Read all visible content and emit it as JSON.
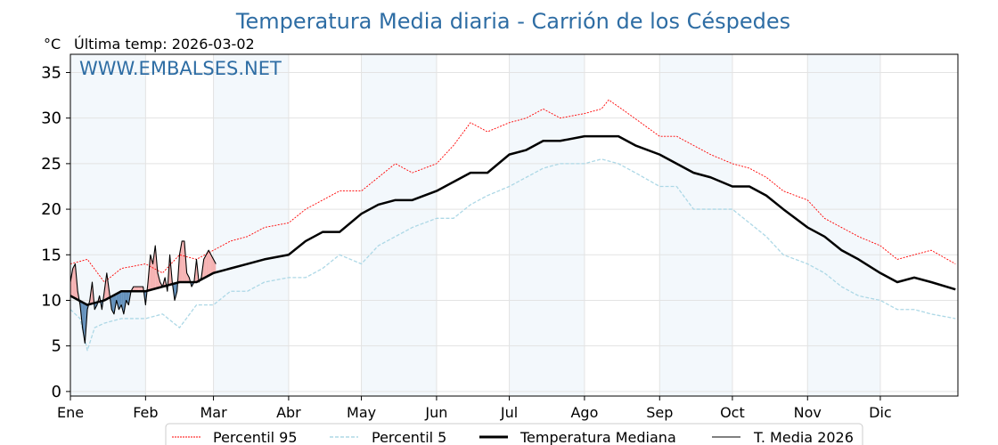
{
  "chart_data": {
    "type": "line",
    "title": "Temperatura Media diaria - Carrión de los Céspedes",
    "unit_label": "°C",
    "subtitle": "Última temp: 2026-03-02",
    "watermark": "WWW.EMBALSES.NET",
    "ylim": [
      -0.5,
      37
    ],
    "yticks": [
      0,
      5,
      10,
      15,
      20,
      25,
      30,
      35
    ],
    "xlim_days": [
      0,
      365
    ],
    "months": [
      {
        "label": "Ene",
        "day": 0
      },
      {
        "label": "Feb",
        "day": 31
      },
      {
        "label": "Mar",
        "day": 59
      },
      {
        "label": "Abr",
        "day": 90
      },
      {
        "label": "May",
        "day": 120
      },
      {
        "label": "Jun",
        "day": 151
      },
      {
        "label": "Jul",
        "day": 181
      },
      {
        "label": "Ago",
        "day": 212
      },
      {
        "label": "Sep",
        "day": 243
      },
      {
        "label": "Oct",
        "day": 273
      },
      {
        "label": "Nov",
        "day": 304
      },
      {
        "label": "Dic",
        "day": 334
      }
    ],
    "grid": true,
    "legend_position": "bottom-center",
    "colors": {
      "p95": "#ff0000",
      "p5": "#add8e6",
      "median": "#000000",
      "current": "#000000",
      "above": "#f4a6a6",
      "below": "#4a7fb0",
      "title": "#2e6da4",
      "band": "#f3f8fc"
    },
    "series": [
      {
        "key": "p95",
        "name": "Percentil 95",
        "days": [
          0,
          7,
          14,
          21,
          31,
          38,
          45,
          52,
          59,
          66,
          73,
          80,
          90,
          97,
          104,
          111,
          120,
          127,
          134,
          141,
          151,
          158,
          165,
          172,
          181,
          188,
          195,
          202,
          212,
          219,
          222,
          230,
          243,
          250,
          257,
          264,
          273,
          280,
          287,
          294,
          304,
          311,
          318,
          325,
          334,
          341,
          348,
          355,
          365
        ],
        "values": [
          14,
          14.5,
          12,
          13.5,
          14,
          13,
          15,
          14.5,
          15.5,
          16.5,
          17,
          18,
          18.5,
          20,
          21,
          22,
          22,
          23.5,
          25,
          24,
          25,
          27,
          29.5,
          28.5,
          29.5,
          30,
          31,
          30,
          30.5,
          31,
          32,
          30.5,
          28,
          28,
          27,
          26,
          25,
          24.5,
          23.5,
          22,
          21,
          19,
          18,
          17,
          16,
          14.5,
          15,
          15.5,
          14
        ]
      },
      {
        "key": "p5",
        "name": "Percentil 5",
        "days": [
          0,
          4,
          7,
          10,
          14,
          21,
          31,
          38,
          45,
          52,
          59,
          66,
          73,
          80,
          90,
          97,
          104,
          111,
          120,
          127,
          134,
          141,
          151,
          158,
          165,
          172,
          181,
          188,
          195,
          202,
          212,
          219,
          226,
          233,
          243,
          250,
          257,
          264,
          273,
          280,
          287,
          294,
          304,
          311,
          318,
          325,
          334,
          341,
          348,
          355,
          365
        ],
        "values": [
          9,
          8,
          4.5,
          7,
          7.5,
          8,
          8,
          8.5,
          7,
          9.5,
          9.5,
          11,
          11,
          12,
          12.5,
          12.5,
          13.5,
          15,
          14,
          16,
          17,
          18,
          19,
          19,
          20.5,
          21.5,
          22.5,
          23.5,
          24.5,
          25,
          25,
          25.5,
          25,
          24,
          22.5,
          22.5,
          20,
          20,
          20,
          18.5,
          17,
          15,
          14,
          13,
          11.5,
          10.5,
          10,
          9,
          9,
          8.5,
          8
        ]
      },
      {
        "key": "median",
        "name": "Temperatura Mediana",
        "days": [
          0,
          7,
          14,
          21,
          31,
          38,
          45,
          52,
          59,
          66,
          73,
          80,
          90,
          97,
          104,
          111,
          120,
          127,
          134,
          141,
          151,
          158,
          165,
          172,
          181,
          188,
          195,
          202,
          212,
          219,
          226,
          233,
          243,
          250,
          257,
          264,
          273,
          280,
          287,
          294,
          304,
          311,
          318,
          325,
          334,
          341,
          348,
          355,
          365
        ],
        "values": [
          10.5,
          9.5,
          10,
          11,
          11,
          11.5,
          12,
          12,
          13,
          13.5,
          14,
          14.5,
          15,
          16.5,
          17.5,
          17.5,
          19.5,
          20.5,
          21,
          21,
          22,
          23,
          24,
          24,
          26,
          26.5,
          27.5,
          27.5,
          28,
          28,
          28,
          27,
          26,
          25,
          24,
          23.5,
          22.5,
          22.5,
          21.5,
          20,
          18,
          17,
          15.5,
          14.5,
          13,
          12,
          12.5,
          12,
          11.2
        ]
      },
      {
        "key": "current",
        "name": "T. Media 2026",
        "days": [
          0,
          1,
          2,
          3,
          4,
          5,
          6,
          7,
          8,
          9,
          10,
          11,
          12,
          13,
          14,
          15,
          16,
          17,
          18,
          19,
          20,
          21,
          22,
          23,
          24,
          25,
          26,
          27,
          28,
          29,
          30,
          31,
          32,
          33,
          34,
          35,
          36,
          37,
          38,
          39,
          40,
          41,
          42,
          43,
          44,
          45,
          46,
          47,
          48,
          49,
          50,
          51,
          52,
          53,
          54,
          55,
          56,
          57,
          58,
          59,
          60
        ],
        "values": [
          12,
          13.5,
          14,
          11,
          9.5,
          7,
          5.3,
          9,
          10,
          12,
          9,
          9.5,
          10.5,
          9,
          11,
          13,
          11,
          9,
          8.5,
          10,
          9,
          9.5,
          8.5,
          10,
          9.5,
          11,
          11.5,
          11.5,
          11.5,
          11.5,
          11.5,
          9.5,
          12,
          15,
          14,
          16,
          13,
          12,
          11.5,
          12.5,
          11,
          15,
          12,
          10,
          11,
          15,
          16.5,
          16.5,
          13,
          12.5,
          11.5,
          12,
          14.5,
          12,
          12.5,
          14.5,
          15,
          15.5,
          15,
          14.5,
          14
        ]
      }
    ]
  }
}
